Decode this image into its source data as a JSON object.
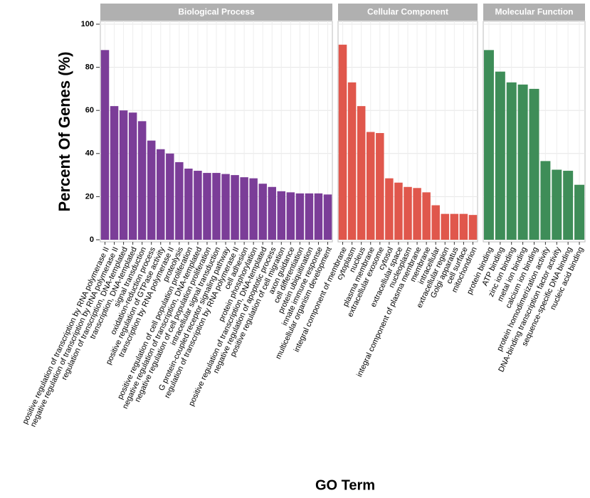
{
  "chart_data": {
    "type": "bar",
    "ylabel": "Percent Of Genes (%)",
    "xlabel": "GO Term",
    "ylim": [
      0,
      100
    ],
    "yticks": [
      0,
      20,
      40,
      60,
      80,
      100
    ],
    "grid": true,
    "panels": [
      {
        "title": "Biological Process",
        "color": "#7b3d98",
        "categories": [
          "positive regulation of transcription by RNA polymerase II",
          "negative regulation of transcription by RNA polymerase II",
          "regulation of transcription, DNA-templated",
          "transcription, DNA-templated",
          "signal transduction",
          "oxidation-reduction process",
          "positive regulation of GTPase activity",
          "transcription by RNA polymerase II",
          "proteolysis",
          "positive regulation of cell population proliferation",
          "negative regulation of transcription, DNA-templated",
          "negative regulation of cell population proliferation",
          "intracellular signal transduction",
          "G protein-coupled receptor signaling pathway",
          "regulation of transcription by RNA polymerase II",
          "cell adhesion",
          "protein phosphorylation",
          "positive regulation of transcription, DNA-templated",
          "negative regulation of apoptotic process",
          "positive regulation of cell migration",
          "axon guidance",
          "cell differentiation",
          "protein ubiquitination",
          "innate immune response",
          "multicellular organism development"
        ],
        "values": [
          88,
          62,
          60,
          59,
          55,
          46,
          42,
          40,
          36,
          33,
          32,
          31,
          31,
          30.5,
          30,
          29,
          28.5,
          26,
          24.5,
          22.5,
          22,
          21.5,
          21.5,
          21.5,
          21
        ]
      },
      {
        "title": "Cellular Component",
        "color": "#e0574c",
        "categories": [
          "integral component of membrane",
          "cytoplasm",
          "nucleus",
          "plasma membrane",
          "extracellular exosome",
          "cytosol",
          "extracellular space",
          "nucleoplasm",
          "integral component of plasma membrane",
          "membrane",
          "intracellular",
          "extracellular region",
          "Golgi apparatus",
          "cell surface",
          "mitochondrion"
        ],
        "values": [
          90.5,
          73,
          62,
          50,
          49.5,
          28.5,
          26.5,
          24.5,
          24,
          22,
          16,
          12,
          12,
          12,
          11.5
        ]
      },
      {
        "title": "Molecular Function",
        "color": "#3e8d58",
        "categories": [
          "protein binding",
          "ATP binding",
          "zinc ion binding",
          "metal ion binding",
          "calcium ion binding",
          "protein homodimerization activity",
          "DNA-binding transcription factor activity",
          "sequence-specific DNA binding",
          "nucleic acid binding"
        ],
        "values": [
          88,
          78,
          73,
          72,
          70,
          36.5,
          32.5,
          32,
          25.5
        ]
      }
    ]
  }
}
